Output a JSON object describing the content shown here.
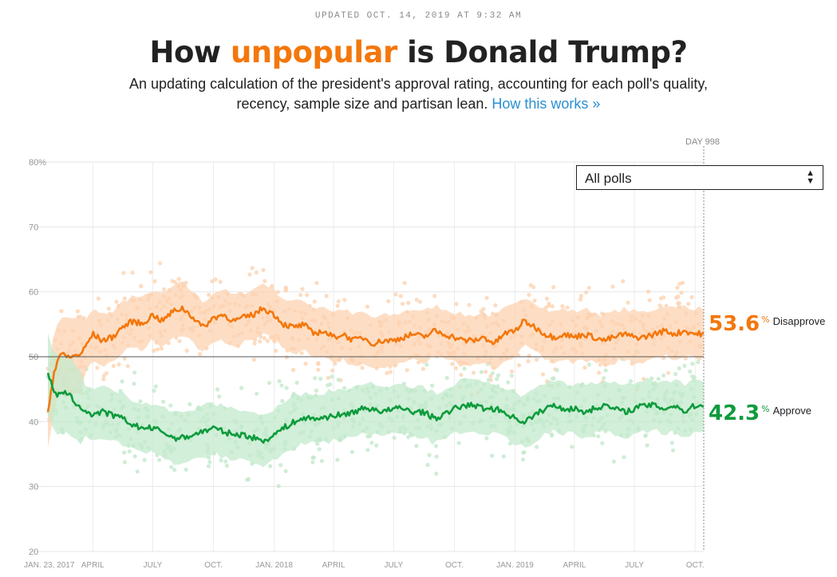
{
  "header": {
    "updated": "UPDATED OCT. 14, 2019 AT 9:32 AM",
    "title_pre": "How ",
    "title_accent": "unpopular",
    "title_post": " is Donald Trump?",
    "subtitle_line1": "An updating calculation of the president's approval rating, accounting for each poll's quality,",
    "subtitle_line2": "recency, sample size and partisan lean. ",
    "subtitle_link": "How this works »"
  },
  "filter": {
    "selected": "All polls"
  },
  "day_marker": "DAY 998",
  "readouts": {
    "disapprove_value": "53.6",
    "disapprove_label": "Disapprove",
    "approve_value": "42.3",
    "approve_label": "Approve",
    "percent_sign": "%"
  },
  "colors": {
    "disapprove": "#f4770b",
    "approve": "#0d9b3c",
    "disapprove_light": "#fcd3b2",
    "approve_light": "#c3e9cc"
  },
  "chart_data": {
    "type": "line",
    "title": "How unpopular is Donald Trump?",
    "ylim": [
      20,
      80
    ],
    "yticks": [
      "80%",
      "70",
      "60",
      "50",
      "40",
      "30",
      "20"
    ],
    "xticks": [
      "JAN. 23, 2017",
      "APRIL",
      "JULY",
      "OCT.",
      "JAN. 2018",
      "APRIL",
      "JULY",
      "OCT.",
      "JAN. 2019",
      "APRIL",
      "JULY",
      "OCT."
    ],
    "x_start": "2017-01-23",
    "x_end": "2019-10-14",
    "grid": true,
    "series": [
      {
        "name": "Disapprove",
        "points": [
          [
            "2017-01-23",
            41.5
          ],
          [
            "2017-02-01",
            47.5
          ],
          [
            "2017-02-10",
            50.5
          ],
          [
            "2017-02-20",
            50.0
          ],
          [
            "2017-03-01",
            50.0
          ],
          [
            "2017-03-15",
            50.5
          ],
          [
            "2017-04-01",
            53.5
          ],
          [
            "2017-04-15",
            52.5
          ],
          [
            "2017-05-01",
            53.0
          ],
          [
            "2017-05-15",
            54.5
          ],
          [
            "2017-06-01",
            55.5
          ],
          [
            "2017-06-15",
            55.0
          ],
          [
            "2017-07-01",
            56.5
          ],
          [
            "2017-07-15",
            55.5
          ],
          [
            "2017-08-01",
            57.0
          ],
          [
            "2017-08-15",
            57.5
          ],
          [
            "2017-09-01",
            56.0
          ],
          [
            "2017-09-15",
            54.5
          ],
          [
            "2017-10-01",
            56.0
          ],
          [
            "2017-10-15",
            56.5
          ],
          [
            "2017-11-01",
            55.5
          ],
          [
            "2017-11-15",
            56.0
          ],
          [
            "2017-12-01",
            56.5
          ],
          [
            "2017-12-15",
            57.5
          ],
          [
            "2018-01-01",
            56.5
          ],
          [
            "2018-01-15",
            55.0
          ],
          [
            "2018-02-01",
            54.5
          ],
          [
            "2018-02-15",
            55.0
          ],
          [
            "2018-03-01",
            53.5
          ],
          [
            "2018-03-15",
            54.0
          ],
          [
            "2018-04-01",
            53.0
          ],
          [
            "2018-04-15",
            53.5
          ],
          [
            "2018-05-01",
            52.5
          ],
          [
            "2018-05-15",
            53.0
          ],
          [
            "2018-06-01",
            52.0
          ],
          [
            "2018-06-15",
            52.5
          ],
          [
            "2018-07-01",
            52.5
          ],
          [
            "2018-07-15",
            53.0
          ],
          [
            "2018-08-01",
            53.5
          ],
          [
            "2018-08-15",
            53.0
          ],
          [
            "2018-09-01",
            54.0
          ],
          [
            "2018-09-15",
            53.5
          ],
          [
            "2018-10-01",
            53.0
          ],
          [
            "2018-10-15",
            52.5
          ],
          [
            "2018-11-01",
            52.5
          ],
          [
            "2018-11-15",
            53.0
          ],
          [
            "2018-12-01",
            52.0
          ],
          [
            "2018-12-15",
            53.5
          ],
          [
            "2019-01-01",
            54.0
          ],
          [
            "2019-01-15",
            55.5
          ],
          [
            "2019-02-01",
            54.5
          ],
          [
            "2019-02-15",
            53.5
          ],
          [
            "2019-03-01",
            53.0
          ],
          [
            "2019-03-15",
            53.5
          ],
          [
            "2019-04-01",
            53.0
          ],
          [
            "2019-04-15",
            53.5
          ],
          [
            "2019-05-01",
            53.0
          ],
          [
            "2019-05-15",
            52.5
          ],
          [
            "2019-06-01",
            53.0
          ],
          [
            "2019-06-15",
            53.5
          ],
          [
            "2019-07-01",
            53.0
          ],
          [
            "2019-07-15",
            53.0
          ],
          [
            "2019-08-01",
            53.5
          ],
          [
            "2019-08-15",
            54.0
          ],
          [
            "2019-09-01",
            53.5
          ],
          [
            "2019-09-15",
            54.0
          ],
          [
            "2019-10-01",
            53.5
          ],
          [
            "2019-10-14",
            53.6
          ]
        ]
      },
      {
        "name": "Approve",
        "points": [
          [
            "2017-01-23",
            47.5
          ],
          [
            "2017-02-01",
            44.5
          ],
          [
            "2017-02-10",
            44.0
          ],
          [
            "2017-02-20",
            44.5
          ],
          [
            "2017-03-01",
            43.5
          ],
          [
            "2017-03-15",
            42.0
          ],
          [
            "2017-04-01",
            41.0
          ],
          [
            "2017-04-15",
            41.5
          ],
          [
            "2017-05-01",
            41.0
          ],
          [
            "2017-05-15",
            40.5
          ],
          [
            "2017-06-01",
            39.5
          ],
          [
            "2017-06-15",
            39.0
          ],
          [
            "2017-07-01",
            39.0
          ],
          [
            "2017-07-15",
            38.5
          ],
          [
            "2017-08-01",
            37.5
          ],
          [
            "2017-08-15",
            37.5
          ],
          [
            "2017-09-01",
            38.0
          ],
          [
            "2017-09-15",
            38.5
          ],
          [
            "2017-10-01",
            39.0
          ],
          [
            "2017-10-15",
            38.5
          ],
          [
            "2017-11-01",
            38.0
          ],
          [
            "2017-11-15",
            38.0
          ],
          [
            "2017-12-01",
            37.5
          ],
          [
            "2017-12-15",
            37.0
          ],
          [
            "2018-01-01",
            38.0
          ],
          [
            "2018-01-15",
            39.0
          ],
          [
            "2018-02-01",
            40.0
          ],
          [
            "2018-02-15",
            40.5
          ],
          [
            "2018-03-01",
            40.5
          ],
          [
            "2018-03-15",
            40.5
          ],
          [
            "2018-04-01",
            41.0
          ],
          [
            "2018-04-15",
            41.0
          ],
          [
            "2018-05-01",
            41.5
          ],
          [
            "2018-05-15",
            42.0
          ],
          [
            "2018-06-01",
            42.0
          ],
          [
            "2018-06-15",
            41.5
          ],
          [
            "2018-07-01",
            42.0
          ],
          [
            "2018-07-15",
            42.0
          ],
          [
            "2018-08-01",
            41.5
          ],
          [
            "2018-08-15",
            41.5
          ],
          [
            "2018-09-01",
            40.5
          ],
          [
            "2018-09-15",
            41.0
          ],
          [
            "2018-10-01",
            42.0
          ],
          [
            "2018-10-15",
            42.5
          ],
          [
            "2018-11-01",
            42.5
          ],
          [
            "2018-11-15",
            42.0
          ],
          [
            "2018-12-01",
            42.0
          ],
          [
            "2018-12-15",
            41.5
          ],
          [
            "2019-01-01",
            40.5
          ],
          [
            "2019-01-15",
            40.0
          ],
          [
            "2019-02-01",
            41.0
          ],
          [
            "2019-02-15",
            42.0
          ],
          [
            "2019-03-01",
            42.5
          ],
          [
            "2019-03-15",
            42.0
          ],
          [
            "2019-04-01",
            42.0
          ],
          [
            "2019-04-15",
            41.5
          ],
          [
            "2019-05-01",
            42.0
          ],
          [
            "2019-05-15",
            42.5
          ],
          [
            "2019-06-01",
            42.0
          ],
          [
            "2019-06-15",
            41.5
          ],
          [
            "2019-07-01",
            42.0
          ],
          [
            "2019-07-15",
            42.5
          ],
          [
            "2019-08-01",
            42.5
          ],
          [
            "2019-08-15",
            42.0
          ],
          [
            "2019-09-01",
            42.5
          ],
          [
            "2019-09-15",
            41.5
          ],
          [
            "2019-10-01",
            42.5
          ],
          [
            "2019-10-14",
            42.3
          ]
        ]
      }
    ]
  }
}
